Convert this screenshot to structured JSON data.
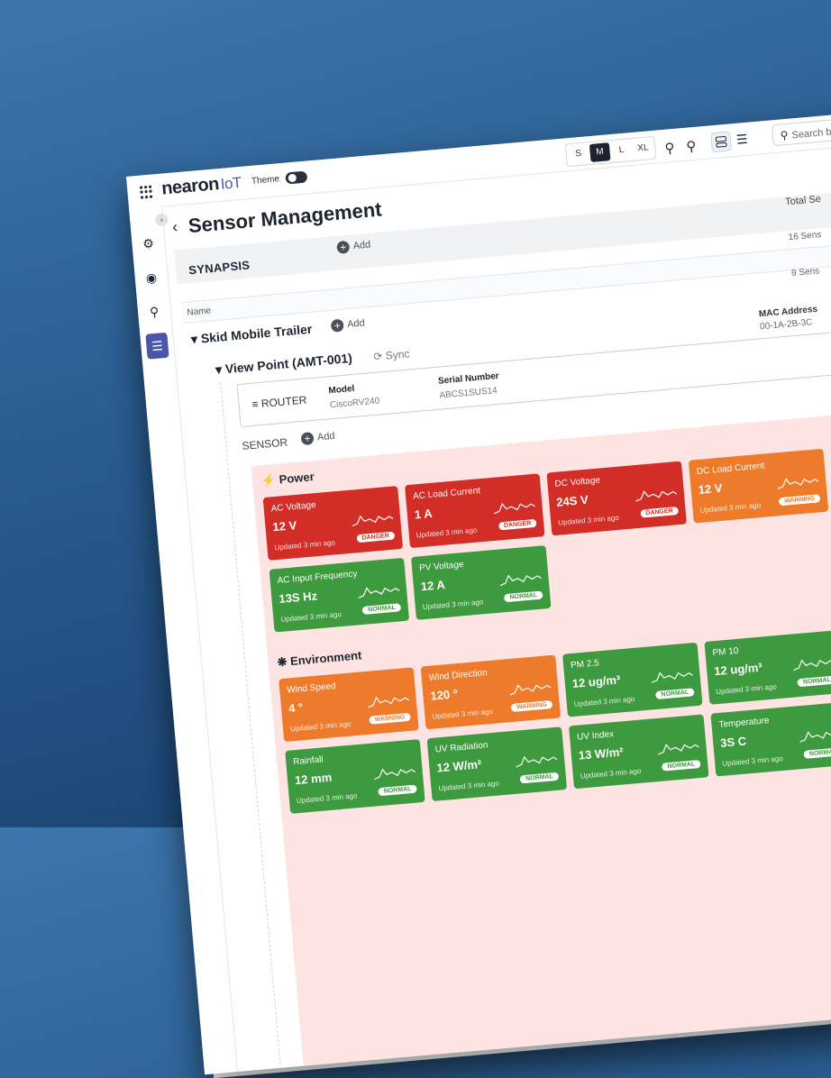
{
  "app": {
    "logo_main": "nearon",
    "logo_sub": "IoT",
    "theme_label": "Theme"
  },
  "toolbar": {
    "sizes": [
      "S",
      "M",
      "L",
      "XL"
    ],
    "selected_size": "M",
    "search_placeholder": "Search b"
  },
  "page": {
    "title": "Sensor Management"
  },
  "org": {
    "name": "SYNAPSIS",
    "add_label": "Add",
    "total_header": "Total Se",
    "total_value": "16 Sens"
  },
  "table": {
    "name_header": "Name"
  },
  "group": {
    "name": "Skid Mobile Trailer",
    "add_label": "Add",
    "count": "9 Sens"
  },
  "device": {
    "name": "View Point (AMT-001)",
    "sync_label": "Sync",
    "mac_header": "MAC Address",
    "mac_value": "00-1A-2B-3C"
  },
  "router": {
    "label": "ROUTER",
    "model_header": "Model",
    "model_value": "CiscoRV240",
    "serial_header": "Serial Number",
    "serial_value": "ABCS1SUS14"
  },
  "sensor": {
    "header": "SENSOR",
    "add_label": "Add"
  },
  "categories": {
    "power": {
      "name": "Power",
      "cards": [
        {
          "title": "AC Voltage",
          "value": "12 V",
          "updated": "Updated 3 min ago",
          "badge": "DANGER",
          "status": "red"
        },
        {
          "title": "AC Load Current",
          "value": "1 A",
          "updated": "Updated 3 min ago",
          "badge": "DANGER",
          "status": "red"
        },
        {
          "title": "DC Voltage",
          "value": "24S V",
          "updated": "Updated 3 min ago",
          "badge": "DANGER",
          "status": "red"
        },
        {
          "title": "DC Load Current",
          "value": "12 V",
          "updated": "Updated 3 min ago",
          "badge": "WARNING",
          "status": "orange"
        },
        {
          "title": "AC Input Frequency",
          "value": "13S Hz",
          "updated": "Updated 3 min ago",
          "badge": "NORMAL",
          "status": "green"
        },
        {
          "title": "PV Voltage",
          "value": "12 A",
          "updated": "Updated 3 min ago",
          "badge": "NORMAL",
          "status": "green"
        }
      ]
    },
    "environment": {
      "name": "Environment",
      "cards": [
        {
          "title": "Wind Speed",
          "value": "4 °",
          "updated": "Updated 3 min ago",
          "badge": "WARNING",
          "status": "orange"
        },
        {
          "title": "Wind Direction",
          "value": "120 °",
          "updated": "Updated 3 min ago",
          "badge": "WARNING",
          "status": "orange"
        },
        {
          "title": "PM 2.5",
          "value": "12 ug/m³",
          "updated": "Updated 3 min ago",
          "badge": "NORMAL",
          "status": "green"
        },
        {
          "title": "PM 10",
          "value": "12 ug/m³",
          "updated": "Updated 3 min ago",
          "badge": "NORMAL",
          "status": "green"
        },
        {
          "title": "Rainfall",
          "value": "12 mm",
          "updated": "Updated 3 min ago",
          "badge": "NORMAL",
          "status": "green"
        },
        {
          "title": "UV Radiation",
          "value": "12 W/m²",
          "updated": "Updated 3 min ago",
          "badge": "NORMAL",
          "status": "green"
        },
        {
          "title": "UV Index",
          "value": "13 W/m²",
          "updated": "Updated 3 min ago",
          "badge": "NORMAL",
          "status": "green"
        },
        {
          "title": "Temperature",
          "value": "3S C",
          "updated": "Updated 3 min ago",
          "badge": "NORMAL",
          "status": "green"
        }
      ]
    }
  },
  "colors": {
    "danger": "#d22d27",
    "warning": "#ee7b2b",
    "normal": "#3e9a3e",
    "accent": "#4b56a8"
  }
}
